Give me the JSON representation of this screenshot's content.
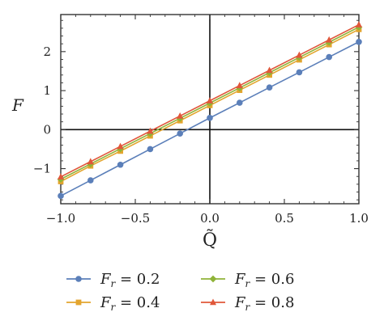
{
  "chart_data": {
    "type": "line",
    "xlabel": "Q̃",
    "ylabel": "F",
    "xlim": [
      -1.0,
      1.0
    ],
    "ylim": [
      -1.9,
      2.95
    ],
    "xticks": [
      -1.0,
      -0.5,
      0.0,
      0.5,
      1.0
    ],
    "xtick_labels": [
      "−1.0",
      "−0.5",
      "0.0",
      "0.5",
      "1.0"
    ],
    "yticks": [
      -1,
      0,
      1,
      2
    ],
    "ytick_labels": [
      "−1",
      "0",
      "1",
      "2"
    ],
    "grid": false,
    "legend_position": "bottom",
    "x": [
      -1.0,
      -0.8,
      -0.6,
      -0.4,
      -0.2,
      0.0,
      0.2,
      0.4,
      0.6,
      0.8,
      1.0
    ],
    "series": [
      {
        "name": "F_r = 0.2",
        "label_base": "F",
        "label_sub": "r",
        "label_value": " = 0.2",
        "color": "#5b7fb9",
        "marker": "circle",
        "values": [
          -1.7,
          -1.3,
          -0.9,
          -0.5,
          -0.1,
          0.3,
          0.69,
          1.08,
          1.47,
          1.86,
          2.25
        ]
      },
      {
        "name": "F_r = 0.4",
        "label_base": "F",
        "label_sub": "r",
        "label_value": " = 0.4",
        "color": "#e3a52e",
        "marker": "square",
        "values": [
          -1.33,
          -0.93,
          -0.55,
          -0.16,
          0.23,
          0.62,
          1.01,
          1.4,
          1.79,
          2.18,
          2.57
        ]
      },
      {
        "name": "F_r = 0.6",
        "label_base": "F",
        "label_sub": "r",
        "label_value": " = 0.6",
        "color": "#8fb338",
        "marker": "diamond",
        "values": [
          -1.27,
          -0.88,
          -0.49,
          -0.1,
          0.29,
          0.68,
          1.07,
          1.46,
          1.85,
          2.24,
          2.63
        ]
      },
      {
        "name": "F_r = 0.8",
        "label_base": "F",
        "label_sub": "r",
        "label_value": " = 0.8",
        "color": "#e0573a",
        "marker": "triangle",
        "values": [
          -1.21,
          -0.82,
          -0.43,
          -0.04,
          0.35,
          0.74,
          1.13,
          1.52,
          1.91,
          2.3,
          2.69
        ]
      }
    ]
  }
}
